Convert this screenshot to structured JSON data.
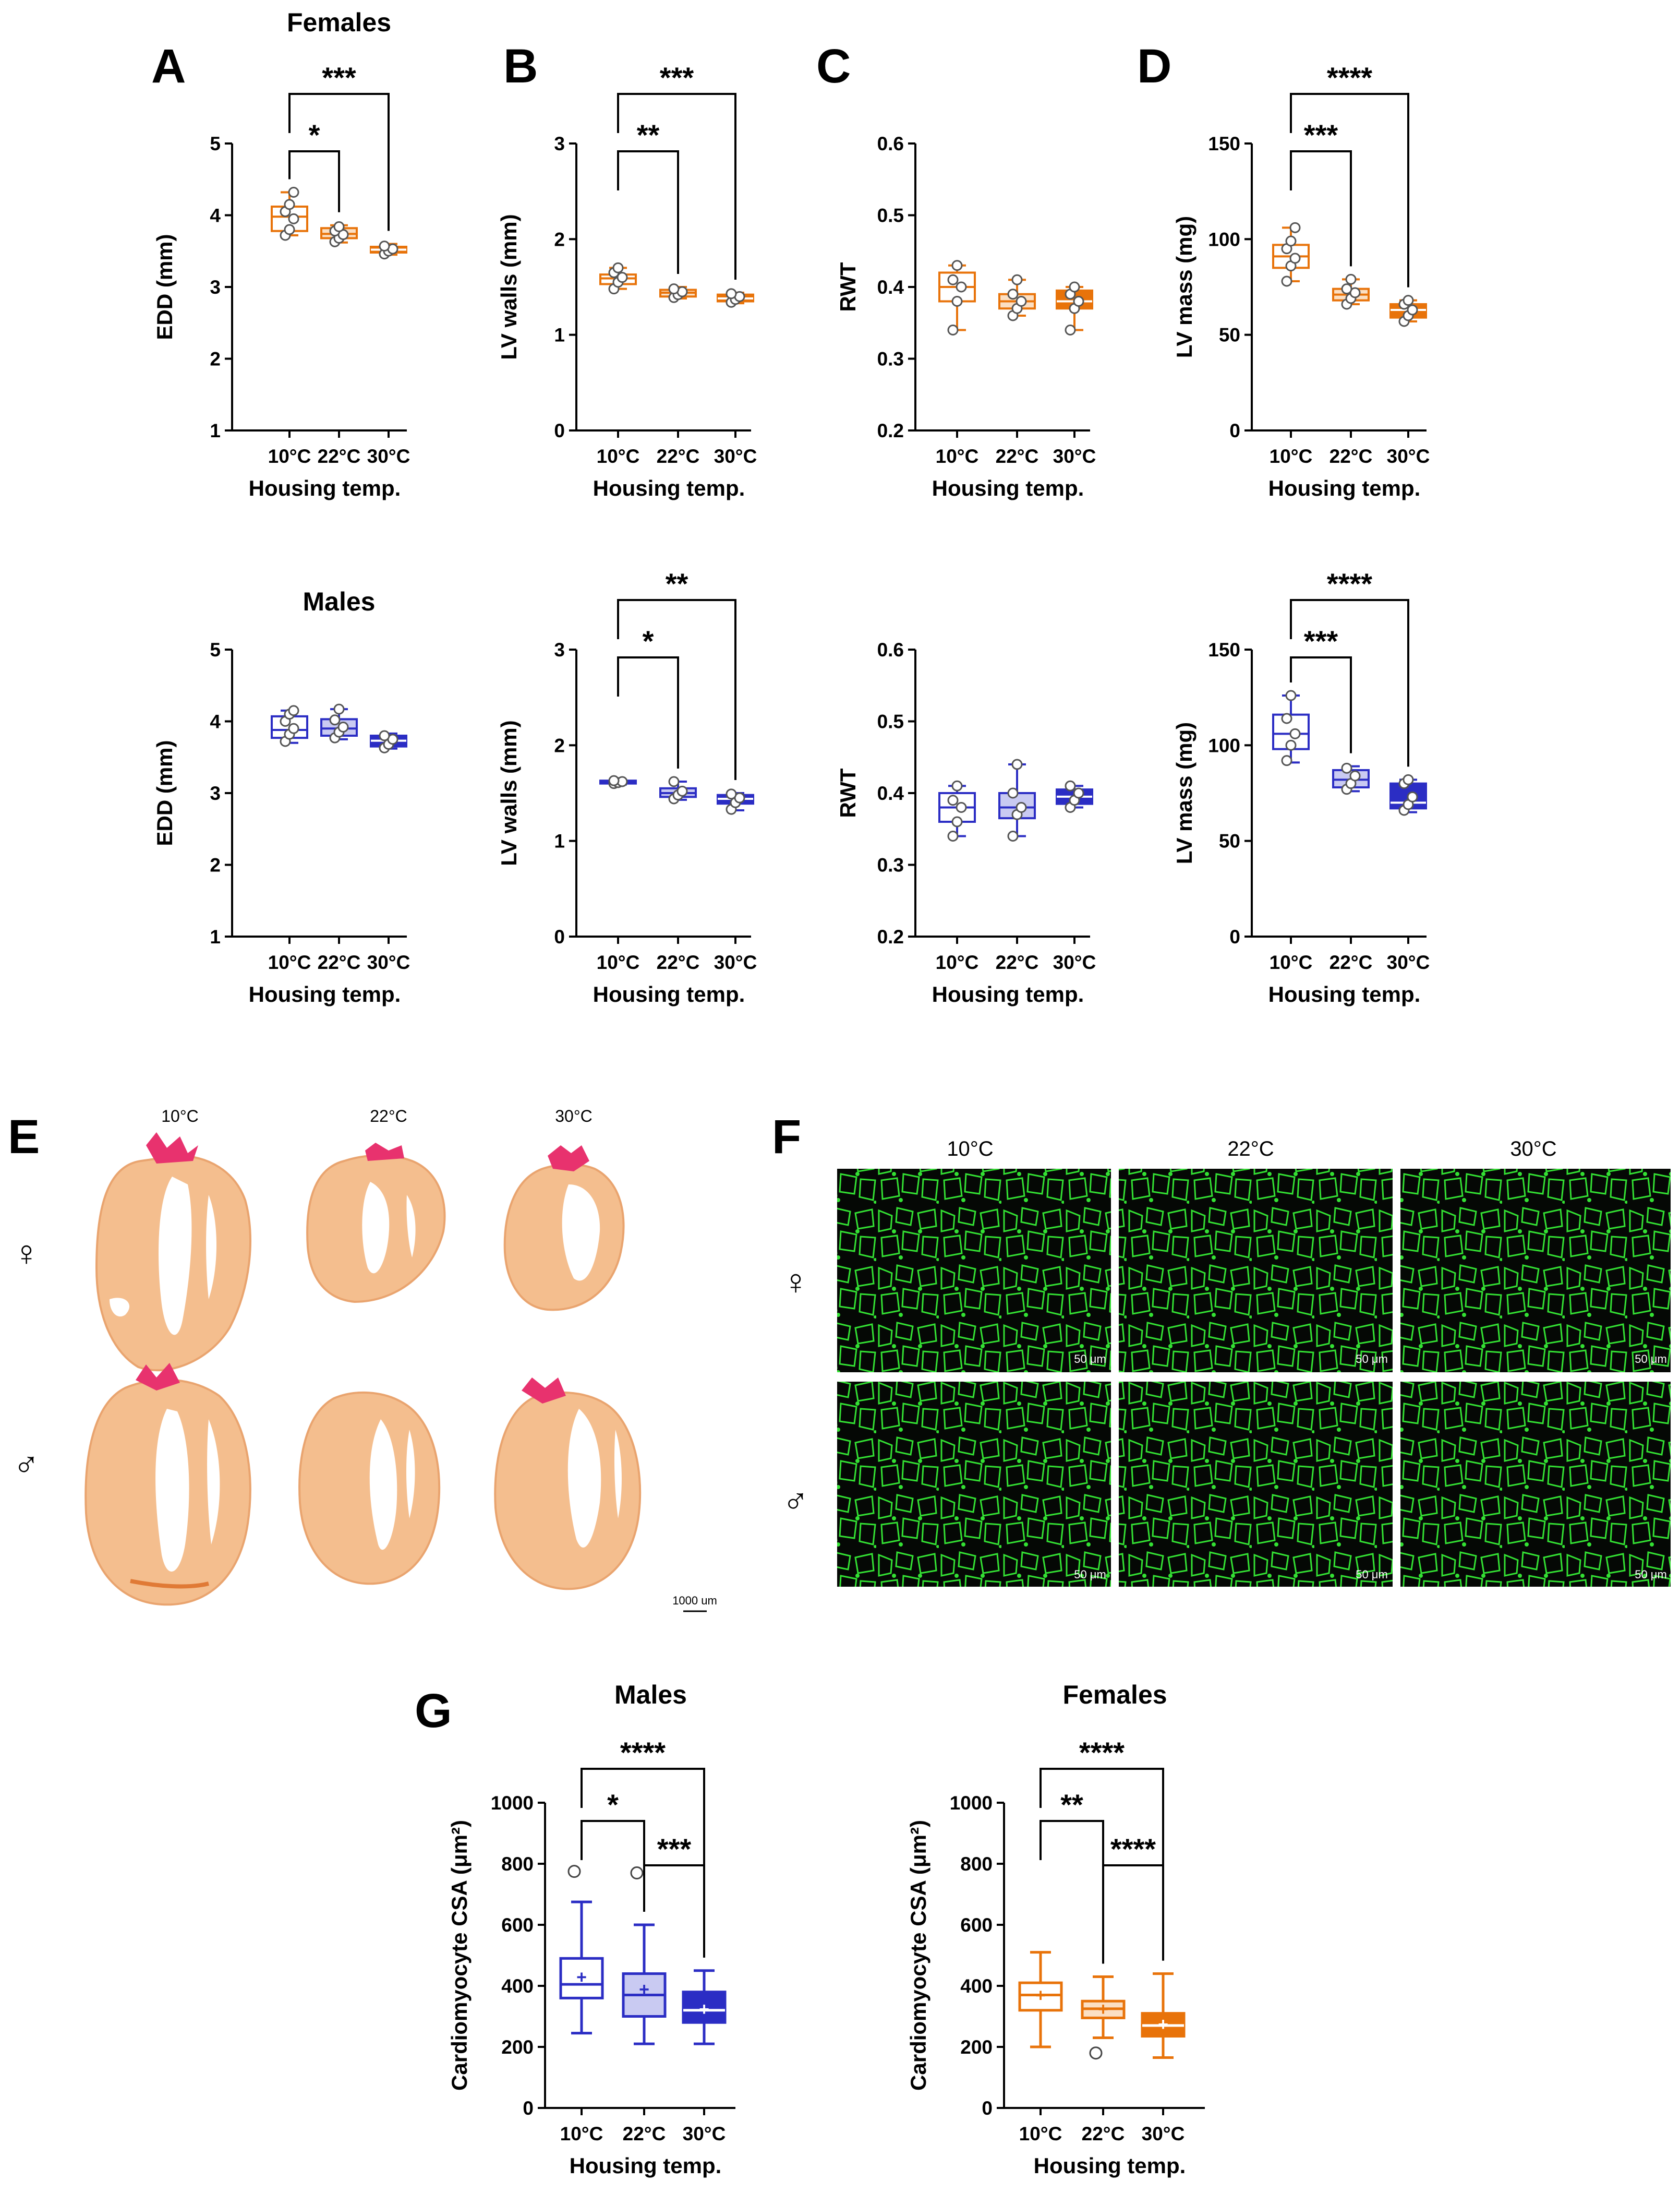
{
  "colors": {
    "female": "#E8730A",
    "male": "#2B2DC4",
    "female_light": "#FBDFC3",
    "male_light": "#C9CAF2",
    "tissue": "#F4BE8E",
    "tissue_edge": "#E9A46F",
    "collagen": "#E8326E",
    "lectin": "#33E033",
    "micro_bg": "#050805"
  },
  "section_titles": {
    "females": "Females",
    "males": "Males"
  },
  "histology": {
    "E": {
      "label": "E",
      "temps": [
        "10°C",
        "22°C",
        "30°C"
      ],
      "female_symbol": "♀",
      "male_symbol": "♂",
      "scale_bar": "1000 um"
    },
    "F": {
      "label": "F",
      "temps": [
        "10°C",
        "22°C",
        "30°C"
      ],
      "female_symbol": "♀",
      "male_symbol": "♂",
      "scale_bar": "50 μm"
    }
  },
  "chart_data": [
    {
      "id": "A-females",
      "panel_label": "A",
      "type": "box",
      "sex": "female",
      "title": "Females",
      "xlabel": "Housing temp.",
      "ylabel": "EDD (mm)",
      "ylim": [
        1,
        5
      ],
      "yticks": [
        "1",
        "2",
        "3",
        "4",
        "5"
      ],
      "categories": [
        "10°C",
        "22°C",
        "30°C"
      ],
      "boxes": [
        {
          "min": 3.72,
          "q1": 3.78,
          "median": 3.98,
          "q3": 4.12,
          "max": 4.32,
          "points": [
            3.72,
            3.8,
            3.95,
            4.05,
            4.15,
            4.32
          ]
        },
        {
          "min": 3.62,
          "q1": 3.68,
          "median": 3.74,
          "q3": 3.82,
          "max": 3.86,
          "points": [
            3.63,
            3.68,
            3.73,
            3.78,
            3.84
          ]
        },
        {
          "min": 3.45,
          "q1": 3.48,
          "median": 3.52,
          "q3": 3.56,
          "max": 3.6,
          "points": [
            3.46,
            3.5,
            3.53,
            3.57
          ]
        }
      ],
      "significance": [
        {
          "from": 0,
          "to": 1,
          "label": "*"
        },
        {
          "from": 0,
          "to": 2,
          "label": "***"
        }
      ]
    },
    {
      "id": "B-females",
      "panel_label": "B",
      "type": "box",
      "sex": "female",
      "xlabel": "Housing temp.",
      "ylabel": "LV walls (mm)",
      "ylim": [
        0,
        3
      ],
      "yticks": [
        "0",
        "1",
        "2",
        "3"
      ],
      "categories": [
        "10°C",
        "22°C",
        "30°C"
      ],
      "boxes": [
        {
          "min": 1.48,
          "q1": 1.53,
          "median": 1.59,
          "q3": 1.63,
          "max": 1.7,
          "points": [
            1.48,
            1.55,
            1.6,
            1.65,
            1.7
          ]
        },
        {
          "min": 1.38,
          "q1": 1.4,
          "median": 1.44,
          "q3": 1.47,
          "max": 1.5,
          "points": [
            1.39,
            1.42,
            1.45,
            1.48
          ]
        },
        {
          "min": 1.33,
          "q1": 1.35,
          "median": 1.38,
          "q3": 1.42,
          "max": 1.44,
          "points": [
            1.34,
            1.37,
            1.4,
            1.43
          ]
        }
      ],
      "significance": [
        {
          "from": 0,
          "to": 1,
          "label": "**"
        },
        {
          "from": 0,
          "to": 2,
          "label": "***"
        }
      ]
    },
    {
      "id": "C-females",
      "panel_label": "C",
      "type": "box",
      "sex": "female",
      "xlabel": "Housing temp.",
      "ylabel": "RWT",
      "ylim": [
        0.2,
        0.6
      ],
      "yticks": [
        "0.2",
        "0.3",
        "0.4",
        "0.5",
        "0.6"
      ],
      "categories": [
        "10°C",
        "22°C",
        "30°C"
      ],
      "boxes": [
        {
          "min": 0.34,
          "q1": 0.38,
          "median": 0.4,
          "q3": 0.42,
          "max": 0.43,
          "points": [
            0.34,
            0.38,
            0.4,
            0.41,
            0.43
          ]
        },
        {
          "min": 0.36,
          "q1": 0.37,
          "median": 0.38,
          "q3": 0.39,
          "max": 0.41,
          "points": [
            0.36,
            0.37,
            0.38,
            0.39,
            0.41
          ]
        },
        {
          "min": 0.34,
          "q1": 0.37,
          "median": 0.38,
          "q3": 0.395,
          "max": 0.4,
          "points": [
            0.34,
            0.37,
            0.38,
            0.39,
            0.4
          ]
        }
      ],
      "significance": []
    },
    {
      "id": "D-females",
      "panel_label": "D",
      "type": "box",
      "sex": "female",
      "xlabel": "Housing temp.",
      "ylabel": "LV mass (mg)",
      "ylim": [
        0,
        150
      ],
      "yticks": [
        "0",
        "50",
        "100",
        "150"
      ],
      "categories": [
        "10°C",
        "22°C",
        "30°C"
      ],
      "boxes": [
        {
          "min": 78,
          "q1": 85,
          "median": 91,
          "q3": 97,
          "max": 106,
          "points": [
            78,
            86,
            90,
            95,
            99,
            106
          ]
        },
        {
          "min": 66,
          "q1": 68,
          "median": 71,
          "q3": 74,
          "max": 79,
          "points": [
            66,
            69,
            72,
            74,
            79
          ]
        },
        {
          "min": 57,
          "q1": 59,
          "median": 63,
          "q3": 66,
          "max": 68,
          "points": [
            57,
            60,
            63,
            66,
            68
          ]
        }
      ],
      "significance": [
        {
          "from": 0,
          "to": 1,
          "label": "***"
        },
        {
          "from": 0,
          "to": 2,
          "label": "****"
        }
      ]
    },
    {
      "id": "A-males",
      "type": "box",
      "sex": "male",
      "title": "Males",
      "xlabel": "Housing temp.",
      "ylabel": "EDD (mm)",
      "ylim": [
        1,
        5
      ],
      "yticks": [
        "1",
        "2",
        "3",
        "4",
        "5"
      ],
      "categories": [
        "10°C",
        "22°C",
        "30°C"
      ],
      "boxes": [
        {
          "min": 3.7,
          "q1": 3.77,
          "median": 3.88,
          "q3": 4.07,
          "max": 4.15,
          "points": [
            3.72,
            3.82,
            3.9,
            4.0,
            4.1,
            4.15
          ]
        },
        {
          "min": 3.75,
          "q1": 3.8,
          "median": 3.9,
          "q3": 4.03,
          "max": 4.17,
          "points": [
            3.77,
            3.85,
            3.92,
            4.02,
            4.17
          ]
        },
        {
          "min": 3.62,
          "q1": 3.65,
          "median": 3.73,
          "q3": 3.8,
          "max": 3.83,
          "points": [
            3.63,
            3.68,
            3.75,
            3.8
          ]
        }
      ],
      "significance": []
    },
    {
      "id": "B-males",
      "type": "box",
      "sex": "male",
      "xlabel": "Housing temp.",
      "ylabel": "LV walls (mm)",
      "ylim": [
        0,
        3
      ],
      "yticks": [
        "0",
        "1",
        "2",
        "3"
      ],
      "categories": [
        "10°C",
        "22°C",
        "30°C"
      ],
      "boxes": [
        {
          "min": 1.59,
          "q1": 1.6,
          "median": 1.61,
          "q3": 1.63,
          "max": 1.64,
          "points": [
            1.6,
            1.61,
            1.62,
            1.63
          ]
        },
        {
          "min": 1.43,
          "q1": 1.46,
          "median": 1.5,
          "q3": 1.55,
          "max": 1.62,
          "points": [
            1.44,
            1.48,
            1.52,
            1.62
          ]
        },
        {
          "min": 1.32,
          "q1": 1.39,
          "median": 1.44,
          "q3": 1.48,
          "max": 1.5,
          "points": [
            1.33,
            1.4,
            1.45,
            1.49
          ]
        }
      ],
      "significance": [
        {
          "from": 0,
          "to": 1,
          "label": "*"
        },
        {
          "from": 0,
          "to": 2,
          "label": "**"
        }
      ]
    },
    {
      "id": "C-males",
      "type": "box",
      "sex": "male",
      "xlabel": "Housing temp.",
      "ylabel": "RWT",
      "ylim": [
        0.2,
        0.6
      ],
      "yticks": [
        "0.2",
        "0.3",
        "0.4",
        "0.5",
        "0.6"
      ],
      "categories": [
        "10°C",
        "22°C",
        "30°C"
      ],
      "boxes": [
        {
          "min": 0.34,
          "q1": 0.36,
          "median": 0.38,
          "q3": 0.4,
          "max": 0.41,
          "points": [
            0.34,
            0.36,
            0.38,
            0.39,
            0.41
          ]
        },
        {
          "min": 0.34,
          "q1": 0.365,
          "median": 0.38,
          "q3": 0.4,
          "max": 0.44,
          "points": [
            0.34,
            0.37,
            0.38,
            0.4,
            0.44
          ]
        },
        {
          "min": 0.38,
          "q1": 0.385,
          "median": 0.395,
          "q3": 0.405,
          "max": 0.41,
          "points": [
            0.38,
            0.39,
            0.4,
            0.41
          ]
        }
      ],
      "significance": []
    },
    {
      "id": "D-males",
      "type": "box",
      "sex": "male",
      "xlabel": "Housing temp.",
      "ylabel": "LV mass (mg)",
      "ylim": [
        0,
        150
      ],
      "yticks": [
        "0",
        "50",
        "100",
        "150"
      ],
      "categories": [
        "10°C",
        "22°C",
        "30°C"
      ],
      "boxes": [
        {
          "min": 91,
          "q1": 98,
          "median": 106,
          "q3": 116,
          "max": 126,
          "points": [
            92,
            100,
            106,
            114,
            126
          ]
        },
        {
          "min": 76,
          "q1": 78,
          "median": 82,
          "q3": 87,
          "max": 89,
          "points": [
            77,
            80,
            84,
            88
          ]
        },
        {
          "min": 65,
          "q1": 67,
          "median": 70,
          "q3": 80,
          "max": 82,
          "points": [
            66,
            69,
            73,
            80,
            82
          ]
        }
      ],
      "significance": [
        {
          "from": 0,
          "to": 1,
          "label": "***"
        },
        {
          "from": 0,
          "to": 2,
          "label": "****"
        }
      ]
    },
    {
      "id": "G-males",
      "panel_label": "G",
      "type": "box",
      "sex": "male",
      "title": "Males",
      "xlabel": "Housing temp.",
      "ylabel": "Cardiomyocyte CSA (μm²)",
      "ylim": [
        0,
        1000
      ],
      "yticks": [
        "0",
        "200",
        "400",
        "600",
        "800",
        "1000"
      ],
      "categories": [
        "10°C",
        "22°C",
        "30°C"
      ],
      "boxes": [
        {
          "min": 245,
          "q1": 360,
          "median": 405,
          "q3": 490,
          "max": 675,
          "mean": 430,
          "outliers": [
            775
          ]
        },
        {
          "min": 210,
          "q1": 300,
          "median": 370,
          "q3": 440,
          "max": 600,
          "mean": 390,
          "outliers": [
            770
          ]
        },
        {
          "min": 210,
          "q1": 280,
          "median": 320,
          "q3": 380,
          "max": 450,
          "mean": 325,
          "outliers": []
        }
      ],
      "significance": [
        {
          "from": 0,
          "to": 1,
          "label": "*"
        },
        {
          "from": 1,
          "to": 2,
          "label": "***"
        },
        {
          "from": 0,
          "to": 2,
          "label": "****"
        }
      ]
    },
    {
      "id": "G-females",
      "type": "box",
      "sex": "female",
      "title": "Females",
      "xlabel": "Housing temp.",
      "ylabel": "Cardiomyocyte CSA (μm²)",
      "ylim": [
        0,
        1000
      ],
      "yticks": [
        "0",
        "200",
        "400",
        "600",
        "800",
        "1000"
      ],
      "categories": [
        "10°C",
        "22°C",
        "30°C"
      ],
      "boxes": [
        {
          "min": 200,
          "q1": 320,
          "median": 370,
          "q3": 410,
          "max": 510,
          "mean": 370,
          "outliers": []
        },
        {
          "min": 230,
          "q1": 295,
          "median": 325,
          "q3": 350,
          "max": 430,
          "mean": 325,
          "outliers": [
            180
          ]
        },
        {
          "min": 165,
          "q1": 235,
          "median": 270,
          "q3": 310,
          "max": 440,
          "mean": 275,
          "outliers": []
        }
      ],
      "significance": [
        {
          "from": 0,
          "to": 1,
          "label": "**"
        },
        {
          "from": 1,
          "to": 2,
          "label": "****"
        },
        {
          "from": 0,
          "to": 2,
          "label": "****"
        }
      ]
    }
  ]
}
